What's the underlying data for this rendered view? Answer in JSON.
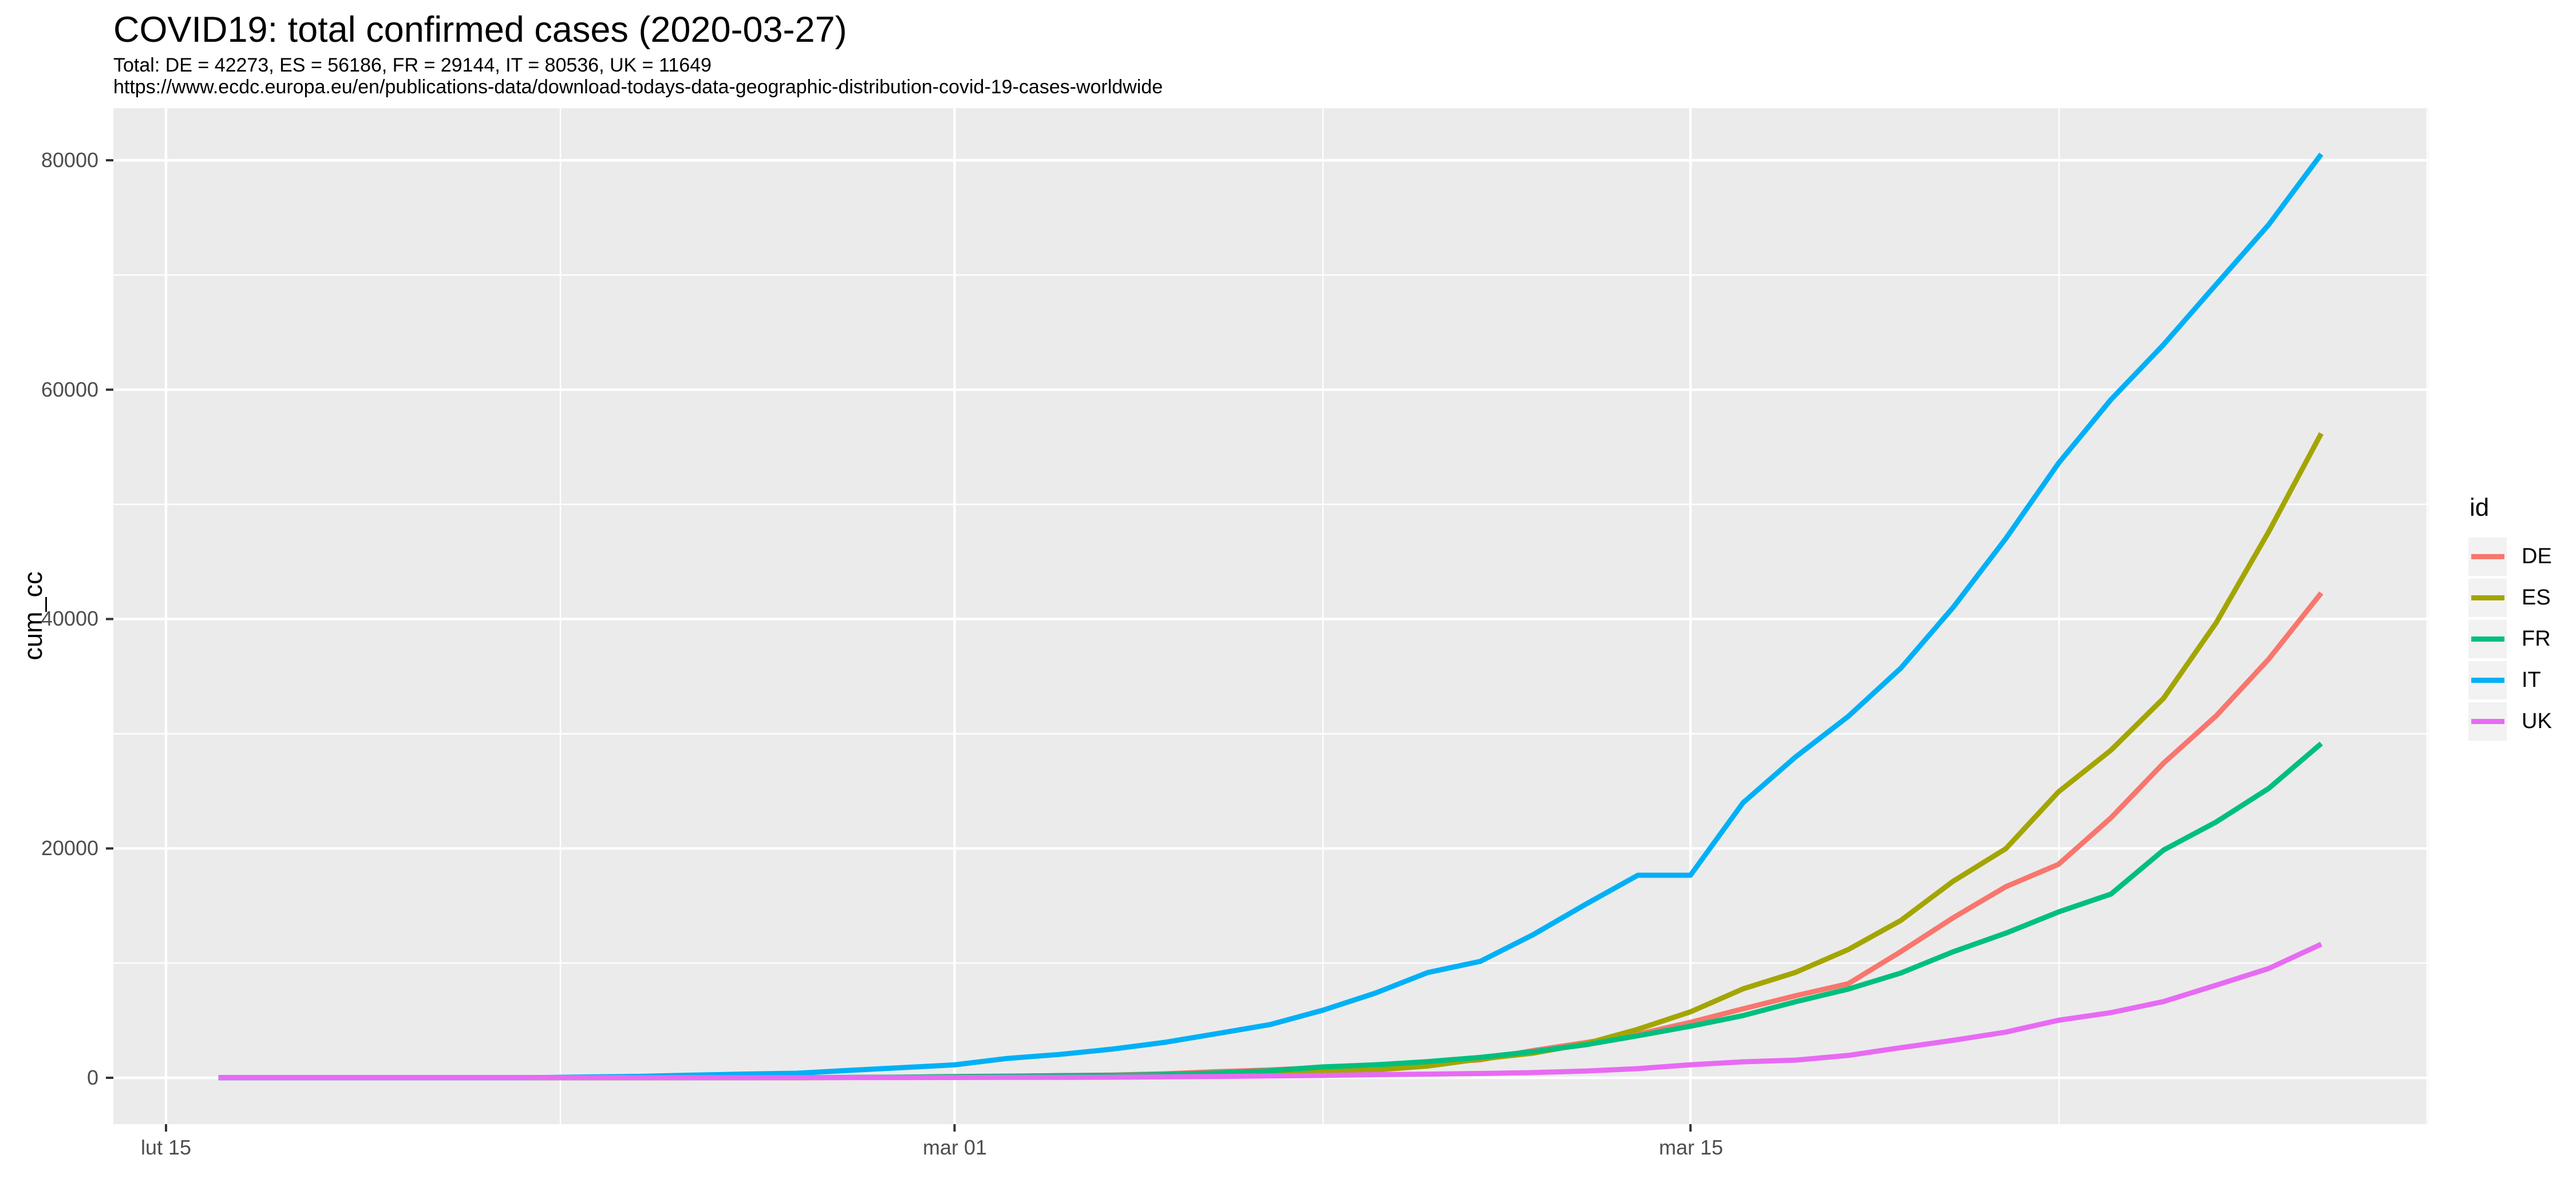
{
  "title": "COVID19: total confirmed cases (2020-03-27)",
  "subtitle": "Total: DE = 42273, ES = 56186, FR = 29144, IT = 80536, UK = 11649",
  "caption": "https://www.ecdc.europa.eu/en/publications-data/download-todays-data-geographic-distribution-covid-19-cases-worldwide",
  "legend": {
    "title": "id",
    "items": [
      {
        "label": "DE",
        "color": "#F8766D"
      },
      {
        "label": "ES",
        "color": "#A3A500"
      },
      {
        "label": "FR",
        "color": "#00BF7D"
      },
      {
        "label": "IT",
        "color": "#00B0F6"
      },
      {
        "label": "UK",
        "color": "#E76BF3"
      }
    ]
  },
  "chart_data": {
    "type": "line",
    "title": "COVID19: total confirmed cases (2020-03-27)",
    "xlabel": "",
    "ylabel": "cum_cc",
    "x_tick_labels": [
      "lut 15",
      "mar 01",
      "mar 15"
    ],
    "x_major_dates": [
      "2020-02-15",
      "2020-03-01",
      "2020-03-15"
    ],
    "y_tick_labels": [
      "0",
      "20000",
      "40000",
      "60000",
      "80000"
    ],
    "y_ticks": [
      0,
      20000,
      40000,
      60000,
      80000
    ],
    "y_minor_ticks": [
      10000,
      30000,
      50000,
      70000
    ],
    "ylim": [
      0,
      80536
    ],
    "grid": true,
    "legend_position": "right",
    "panel_bg": "#EBEBEB",
    "grid_color": "#FFFFFF",
    "dates": [
      "2020-02-16",
      "2020-02-17",
      "2020-02-18",
      "2020-02-19",
      "2020-02-20",
      "2020-02-21",
      "2020-02-22",
      "2020-02-23",
      "2020-02-24",
      "2020-02-25",
      "2020-02-26",
      "2020-02-27",
      "2020-02-28",
      "2020-02-29",
      "2020-03-01",
      "2020-03-02",
      "2020-03-03",
      "2020-03-04",
      "2020-03-05",
      "2020-03-06",
      "2020-03-07",
      "2020-03-08",
      "2020-03-09",
      "2020-03-10",
      "2020-03-11",
      "2020-03-12",
      "2020-03-13",
      "2020-03-14",
      "2020-03-15",
      "2020-03-16",
      "2020-03-17",
      "2020-03-18",
      "2020-03-19",
      "2020-03-20",
      "2020-03-21",
      "2020-03-22",
      "2020-03-23",
      "2020-03-24",
      "2020-03-25",
      "2020-03-26",
      "2020-03-27"
    ],
    "series": [
      {
        "name": "DE",
        "color": "#F8766D",
        "values": [
          16,
          16,
          16,
          16,
          16,
          16,
          16,
          16,
          16,
          16,
          18,
          21,
          26,
          57,
          117,
          150,
          188,
          240,
          349,
          534,
          684,
          902,
          1139,
          1296,
          1567,
          2369,
          3062,
          3795,
          4838,
          6012,
          7156,
          8198,
          10999,
          13957,
          16662,
          18610,
          22672,
          27436,
          31554,
          36508,
          42273
        ]
      },
      {
        "name": "ES",
        "color": "#A3A500",
        "values": [
          2,
          2,
          2,
          2,
          2,
          2,
          2,
          2,
          2,
          3,
          7,
          12,
          25,
          32,
          45,
          84,
          120,
          165,
          222,
          259,
          400,
          500,
          673,
          1024,
          1639,
          2140,
          2965,
          4231,
          5753,
          7753,
          9191,
          11178,
          13716,
          17147,
          19980,
          24926,
          28572,
          33089,
          39673,
          47610,
          56186
        ]
      },
      {
        "name": "FR",
        "color": "#00BF7D",
        "values": [
          12,
          12,
          12,
          12,
          12,
          12,
          12,
          12,
          12,
          12,
          14,
          18,
          38,
          57,
          100,
          130,
          191,
          212,
          285,
          423,
          613,
          949,
          1126,
          1412,
          1784,
          2281,
          2876,
          3661,
          4499,
          5423,
          6633,
          7730,
          9134,
          10995,
          12612,
          14459,
          16018,
          19856,
          22302,
          25233,
          29144
        ]
      },
      {
        "name": "IT",
        "color": "#00B0F6",
        "values": [
          3,
          3,
          3,
          3,
          3,
          3,
          9,
          76,
          124,
          229,
          322,
          400,
          650,
          888,
          1128,
          1689,
          2036,
          2502,
          3089,
          3858,
          4636,
          5883,
          7375,
          9172,
          10149,
          12462,
          15113,
          17660,
          17660,
          23980,
          27980,
          31506,
          35713,
          41035,
          47021,
          53578,
          59138,
          63927,
          69176,
          74386,
          80536
        ]
      },
      {
        "name": "UK",
        "color": "#E76BF3",
        "values": [
          9,
          9,
          9,
          9,
          9,
          9,
          9,
          9,
          13,
          13,
          13,
          15,
          19,
          20,
          23,
          36,
          39,
          51,
          85,
          115,
          163,
          206,
          273,
          321,
          373,
          456,
          590,
          798,
          1140,
          1391,
          1543,
          1950,
          2626,
          3269,
          3983,
          5018,
          5683,
          6650,
          8077,
          9529,
          11649
        ]
      }
    ]
  }
}
